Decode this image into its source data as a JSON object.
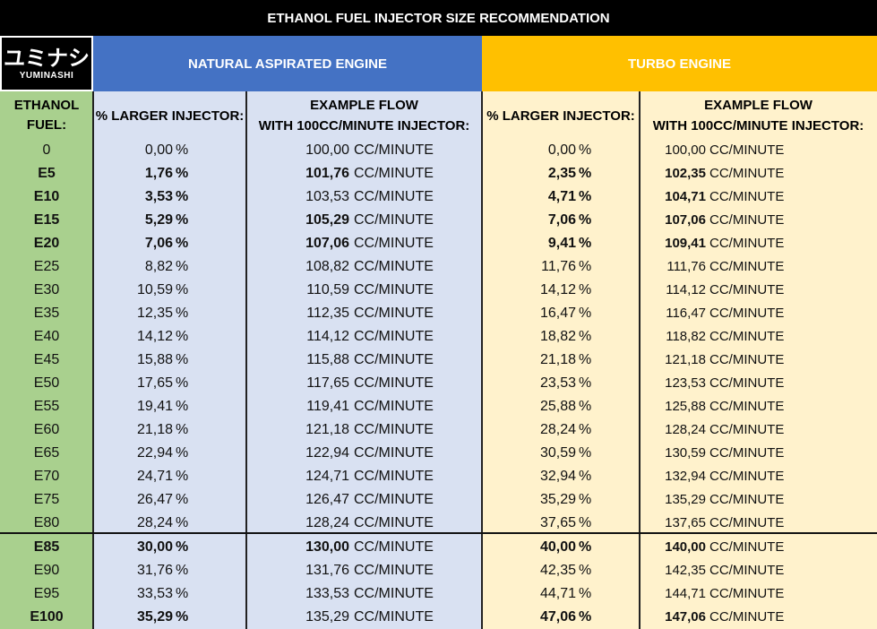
{
  "header": {
    "title": "ETHANOL FUEL INJECTOR SIZE RECOMMENDATION",
    "logo_kana": "ユミナシ",
    "logo_text": "YUMINASHI",
    "na_group": "NATURAL ASPIRATED ENGINE",
    "turbo_group": "TURBO ENGINE"
  },
  "columns": [
    "ETHANOL FUEL:",
    "% LARGER INJECTOR:",
    "EXAMPLE FLOW",
    "WITH 100CC/MINUTE INJECTOR:"
  ],
  "pct_unit": "%",
  "flow_unit": "CC/MINUTE",
  "rows": [
    {
      "fuel": "0",
      "na_pct": "0,00",
      "na_flow": "100,00",
      "tb_pct": "0,00",
      "tb_flow": "100,00",
      "bold": []
    },
    {
      "fuel": "E5",
      "na_pct": "1,76",
      "na_flow": "101,76",
      "tb_pct": "2,35",
      "tb_flow": "102,35",
      "bold": [
        "fuel",
        "na_pct",
        "na_flow",
        "tb_pct",
        "tb_flow"
      ]
    },
    {
      "fuel": "E10",
      "na_pct": "3,53",
      "na_flow": "103,53",
      "tb_pct": "4,71",
      "tb_flow": "104,71",
      "bold": [
        "fuel",
        "na_pct",
        "tb_pct",
        "tb_flow"
      ]
    },
    {
      "fuel": "E15",
      "na_pct": "5,29",
      "na_flow": "105,29",
      "tb_pct": "7,06",
      "tb_flow": "107,06",
      "bold": [
        "fuel",
        "na_pct",
        "na_flow",
        "tb_pct",
        "tb_flow"
      ]
    },
    {
      "fuel": "E20",
      "na_pct": "7,06",
      "na_flow": "107,06",
      "tb_pct": "9,41",
      "tb_flow": "109,41",
      "bold": [
        "fuel",
        "na_pct",
        "na_flow",
        "tb_pct",
        "tb_flow"
      ]
    },
    {
      "fuel": "E25",
      "na_pct": "8,82",
      "na_flow": "108,82",
      "tb_pct": "11,76",
      "tb_flow": "111,76",
      "bold": []
    },
    {
      "fuel": "E30",
      "na_pct": "10,59",
      "na_flow": "110,59",
      "tb_pct": "14,12",
      "tb_flow": "114,12",
      "bold": []
    },
    {
      "fuel": "E35",
      "na_pct": "12,35",
      "na_flow": "112,35",
      "tb_pct": "16,47",
      "tb_flow": "116,47",
      "bold": []
    },
    {
      "fuel": "E40",
      "na_pct": "14,12",
      "na_flow": "114,12",
      "tb_pct": "18,82",
      "tb_flow": "118,82",
      "bold": []
    },
    {
      "fuel": "E45",
      "na_pct": "15,88",
      "na_flow": "115,88",
      "tb_pct": "21,18",
      "tb_flow": "121,18",
      "bold": []
    },
    {
      "fuel": "E50",
      "na_pct": "17,65",
      "na_flow": "117,65",
      "tb_pct": "23,53",
      "tb_flow": "123,53",
      "bold": []
    },
    {
      "fuel": "E55",
      "na_pct": "19,41",
      "na_flow": "119,41",
      "tb_pct": "25,88",
      "tb_flow": "125,88",
      "bold": []
    },
    {
      "fuel": "E60",
      "na_pct": "21,18",
      "na_flow": "121,18",
      "tb_pct": "28,24",
      "tb_flow": "128,24",
      "bold": []
    },
    {
      "fuel": "E65",
      "na_pct": "22,94",
      "na_flow": "122,94",
      "tb_pct": "30,59",
      "tb_flow": "130,59",
      "bold": []
    },
    {
      "fuel": "E70",
      "na_pct": "24,71",
      "na_flow": "124,71",
      "tb_pct": "32,94",
      "tb_flow": "132,94",
      "bold": []
    },
    {
      "fuel": "E75",
      "na_pct": "26,47",
      "na_flow": "126,47",
      "tb_pct": "35,29",
      "tb_flow": "135,29",
      "bold": []
    },
    {
      "fuel": "E80",
      "na_pct": "28,24",
      "na_flow": "128,24",
      "tb_pct": "37,65",
      "tb_flow": "137,65",
      "bold": []
    },
    {
      "fuel": "E85",
      "na_pct": "30,00",
      "na_flow": "130,00",
      "tb_pct": "40,00",
      "tb_flow": "140,00",
      "bold": [
        "fuel",
        "na_pct",
        "na_flow",
        "tb_pct",
        "tb_flow"
      ]
    },
    {
      "fuel": "E90",
      "na_pct": "31,76",
      "na_flow": "131,76",
      "tb_pct": "42,35",
      "tb_flow": "142,35",
      "bold": []
    },
    {
      "fuel": "E95",
      "na_pct": "33,53",
      "na_flow": "133,53",
      "tb_pct": "44,71",
      "tb_flow": "144,71",
      "bold": []
    },
    {
      "fuel": "E100",
      "na_pct": "35,29",
      "na_flow": "135,29",
      "tb_pct": "47,06",
      "tb_flow": "147,06",
      "bold": [
        "fuel",
        "na_pct",
        "tb_pct",
        "tb_flow"
      ]
    }
  ]
}
